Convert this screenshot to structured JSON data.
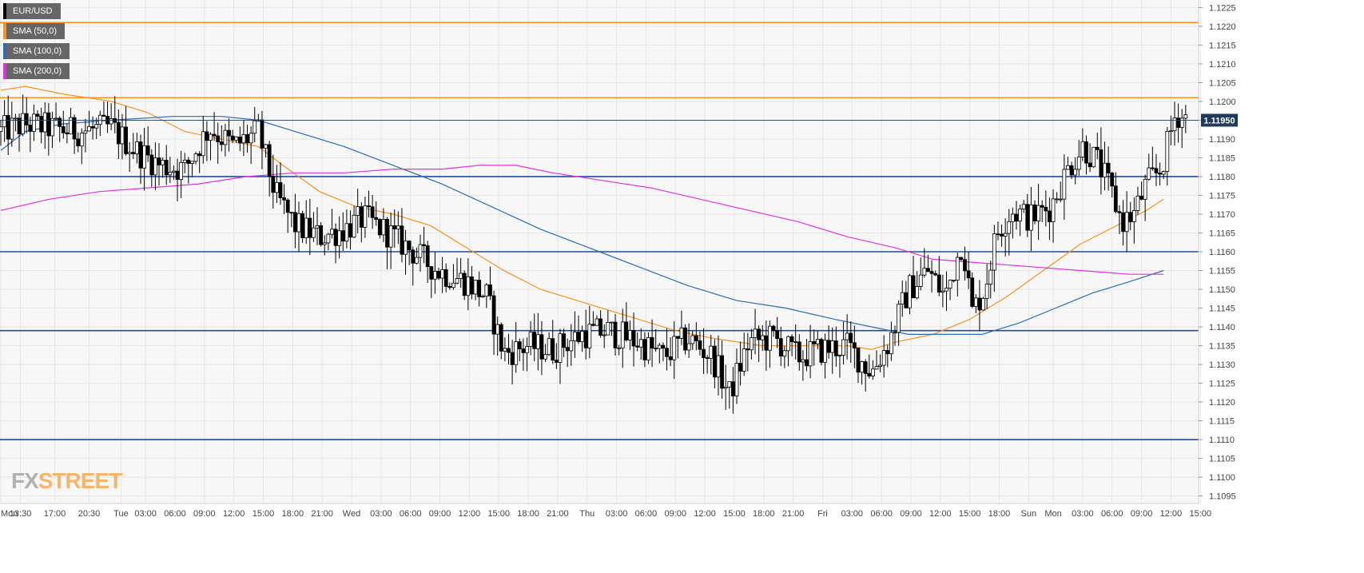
{
  "legend": [
    {
      "label": "EUR/USD",
      "color": "#000000"
    },
    {
      "label": "SMA (50,0)",
      "color": "#f7931e"
    },
    {
      "label": "SMA (100,0)",
      "color": "#2e6bb5"
    },
    {
      "label": "SMA (200,0)",
      "color": "#e033e0"
    }
  ],
  "logo": {
    "fx": "FX",
    "street": "STREET"
  },
  "chart_data": {
    "type": "candlestick",
    "symbol": "EUR/USD",
    "ylim": [
      1.1093,
      1.1227
    ],
    "y_ticks": [
      "1.1095",
      "1.1100",
      "1.1105",
      "1.1110",
      "1.1115",
      "1.1120",
      "1.1125",
      "1.1130",
      "1.1135",
      "1.1140",
      "1.1145",
      "1.1150",
      "1.1155",
      "1.1160",
      "1.1165",
      "1.1170",
      "1.1175",
      "1.1180",
      "1.1185",
      "1.1190",
      "1.1195",
      "1.1200",
      "1.1205",
      "1.1210",
      "1.1215",
      "1.1220",
      "1.1225"
    ],
    "x_ticks": [
      {
        "label": "Mon",
        "bar": 0
      },
      {
        "label": "13:30",
        "bar": 8
      },
      {
        "label": "17:00",
        "bar": 22
      },
      {
        "label": "20:30",
        "bar": 36
      },
      {
        "label": "Tue",
        "bar": 49
      },
      {
        "label": "03:00",
        "bar": 59
      },
      {
        "label": "06:00",
        "bar": 71
      },
      {
        "label": "09:00",
        "bar": 83
      },
      {
        "label": "12:00",
        "bar": 95
      },
      {
        "label": "15:00",
        "bar": 107
      },
      {
        "label": "18:00",
        "bar": 119
      },
      {
        "label": "21:00",
        "bar": 131
      },
      {
        "label": "Wed",
        "bar": 143
      },
      {
        "label": "03:00",
        "bar": 155
      },
      {
        "label": "06:00",
        "bar": 167
      },
      {
        "label": "09:00",
        "bar": 179
      },
      {
        "label": "12:00",
        "bar": 191
      },
      {
        "label": "15:00",
        "bar": 203
      },
      {
        "label": "18:00",
        "bar": 215
      },
      {
        "label": "21:00",
        "bar": 227
      },
      {
        "label": "Thu",
        "bar": 239
      },
      {
        "label": "03:00",
        "bar": 251
      },
      {
        "label": "06:00",
        "bar": 263
      },
      {
        "label": "09:00",
        "bar": 275
      },
      {
        "label": "12:00",
        "bar": 287
      },
      {
        "label": "15:00",
        "bar": 299
      },
      {
        "label": "18:00",
        "bar": 311
      },
      {
        "label": "21:00",
        "bar": 323
      },
      {
        "label": "Fri",
        "bar": 335
      },
      {
        "label": "03:00",
        "bar": 347
      },
      {
        "label": "06:00",
        "bar": 359
      },
      {
        "label": "09:00",
        "bar": 371
      },
      {
        "label": "12:00",
        "bar": 383
      },
      {
        "label": "15:00",
        "bar": 395
      },
      {
        "label": "18:00",
        "bar": 407
      },
      {
        "label": "Sun",
        "bar": 419
      },
      {
        "label": "Mon",
        "bar": 429
      },
      {
        "label": "03:00",
        "bar": 441
      },
      {
        "label": "06:00",
        "bar": 453
      },
      {
        "label": "09:00",
        "bar": 465
      },
      {
        "label": "12:00",
        "bar": 477
      },
      {
        "label": "15:00",
        "bar": 489
      }
    ],
    "bar_count": 490,
    "horizontal_levels": [
      {
        "value": 1.1221,
        "color": "#f7931e"
      },
      {
        "value": 1.1201,
        "color": "#f7931e"
      },
      {
        "value": 1.118,
        "color": "#1f4e9c"
      },
      {
        "value": 1.116,
        "color": "#1f4e9c"
      },
      {
        "value": 1.1139,
        "color": "#1f4e9c"
      },
      {
        "value": 1.111,
        "color": "#1f4e9c"
      }
    ],
    "last_price": {
      "value": 1.1195,
      "label": "1.11950"
    },
    "price_anchors": [
      [
        0,
        1.1192
      ],
      [
        10,
        1.1194
      ],
      [
        20,
        1.1193
      ],
      [
        30,
        1.1192
      ],
      [
        45,
        1.1193
      ],
      [
        55,
        1.1187
      ],
      [
        65,
        1.1183
      ],
      [
        75,
        1.1182
      ],
      [
        85,
        1.1193
      ],
      [
        95,
        1.1188
      ],
      [
        105,
        1.1192
      ],
      [
        112,
        1.1175
      ],
      [
        120,
        1.1167
      ],
      [
        130,
        1.1164
      ],
      [
        140,
        1.1166
      ],
      [
        148,
        1.1169
      ],
      [
        158,
        1.1165
      ],
      [
        168,
        1.116
      ],
      [
        178,
        1.1155
      ],
      [
        190,
        1.1152
      ],
      [
        198,
        1.1148
      ],
      [
        205,
        1.1133
      ],
      [
        215,
        1.1135
      ],
      [
        225,
        1.1134
      ],
      [
        237,
        1.1138
      ],
      [
        247,
        1.1139
      ],
      [
        260,
        1.1136
      ],
      [
        270,
        1.1132
      ],
      [
        280,
        1.1137
      ],
      [
        290,
        1.1132
      ],
      [
        297,
        1.1122
      ],
      [
        305,
        1.1136
      ],
      [
        315,
        1.1137
      ],
      [
        325,
        1.1132
      ],
      [
        335,
        1.1134
      ],
      [
        345,
        1.1135
      ],
      [
        355,
        1.1128
      ],
      [
        362,
        1.1136
      ],
      [
        370,
        1.115
      ],
      [
        378,
        1.1155
      ],
      [
        385,
        1.1148
      ],
      [
        392,
        1.1163
      ],
      [
        396,
        1.1144
      ],
      [
        401,
        1.115
      ],
      [
        406,
        1.1165
      ],
      [
        412,
        1.1171
      ],
      [
        420,
        1.1169
      ],
      [
        428,
        1.1172
      ],
      [
        435,
        1.1182
      ],
      [
        441,
        1.1188
      ],
      [
        447,
        1.1184
      ],
      [
        452,
        1.1177
      ],
      [
        457,
        1.1168
      ],
      [
        462,
        1.117
      ],
      [
        467,
        1.1178
      ],
      [
        473,
        1.1182
      ],
      [
        479,
        1.1197
      ],
      [
        484,
        1.1195
      ]
    ],
    "series": [
      {
        "name": "SMA (50,0)",
        "color": "#f7931e",
        "points": [
          [
            0,
            1.1203
          ],
          [
            10,
            1.1204
          ],
          [
            25,
            1.1202
          ],
          [
            45,
            1.12
          ],
          [
            60,
            1.1197
          ],
          [
            75,
            1.1192
          ],
          [
            90,
            1.119
          ],
          [
            105,
            1.1188
          ],
          [
            115,
            1.1183
          ],
          [
            130,
            1.1176
          ],
          [
            145,
            1.1172
          ],
          [
            160,
            1.117
          ],
          [
            175,
            1.1167
          ],
          [
            190,
            1.1161
          ],
          [
            205,
            1.1155
          ],
          [
            220,
            1.115
          ],
          [
            240,
            1.1146
          ],
          [
            260,
            1.1142
          ],
          [
            275,
            1.1139
          ],
          [
            290,
            1.1137
          ],
          [
            310,
            1.1135
          ],
          [
            330,
            1.1135
          ],
          [
            345,
            1.1135
          ],
          [
            355,
            1.1134
          ],
          [
            365,
            1.1136
          ],
          [
            380,
            1.1138
          ],
          [
            395,
            1.1142
          ],
          [
            410,
            1.1148
          ],
          [
            425,
            1.1155
          ],
          [
            440,
            1.1162
          ],
          [
            455,
            1.1167
          ],
          [
            467,
            1.1171
          ],
          [
            474,
            1.1174
          ]
        ]
      },
      {
        "name": "SMA (100,0)",
        "color": "#2e6bb5",
        "points": [
          [
            0,
            1.1187
          ],
          [
            10,
            1.1192
          ],
          [
            25,
            1.1194
          ],
          [
            45,
            1.1195
          ],
          [
            70,
            1.1196
          ],
          [
            90,
            1.1196
          ],
          [
            105,
            1.1195
          ],
          [
            120,
            1.1192
          ],
          [
            140,
            1.1188
          ],
          [
            160,
            1.1183
          ],
          [
            180,
            1.1178
          ],
          [
            200,
            1.1172
          ],
          [
            220,
            1.1166
          ],
          [
            240,
            1.1161
          ],
          [
            260,
            1.1156
          ],
          [
            280,
            1.1151
          ],
          [
            300,
            1.1147
          ],
          [
            320,
            1.1145
          ],
          [
            340,
            1.1142
          ],
          [
            355,
            1.114
          ],
          [
            370,
            1.1138
          ],
          [
            385,
            1.1138
          ],
          [
            400,
            1.1138
          ],
          [
            415,
            1.1141
          ],
          [
            430,
            1.1145
          ],
          [
            445,
            1.1149
          ],
          [
            460,
            1.1152
          ],
          [
            474,
            1.1155
          ]
        ]
      },
      {
        "name": "SMA (200,0)",
        "color": "#e033e0",
        "points": [
          [
            0,
            1.1171
          ],
          [
            20,
            1.1174
          ],
          [
            40,
            1.1176
          ],
          [
            60,
            1.1177
          ],
          [
            80,
            1.1178
          ],
          [
            100,
            1.118
          ],
          [
            120,
            1.1181
          ],
          [
            140,
            1.1181
          ],
          [
            160,
            1.1182
          ],
          [
            180,
            1.1182
          ],
          [
            195,
            1.1183
          ],
          [
            210,
            1.1183
          ],
          [
            225,
            1.1181
          ],
          [
            245,
            1.1179
          ],
          [
            265,
            1.1177
          ],
          [
            285,
            1.1174
          ],
          [
            305,
            1.1171
          ],
          [
            325,
            1.1168
          ],
          [
            345,
            1.1164
          ],
          [
            365,
            1.1161
          ],
          [
            380,
            1.1158
          ],
          [
            400,
            1.1157
          ],
          [
            420,
            1.1156
          ],
          [
            440,
            1.1155
          ],
          [
            460,
            1.1154
          ],
          [
            474,
            1.1154
          ]
        ]
      }
    ]
  }
}
